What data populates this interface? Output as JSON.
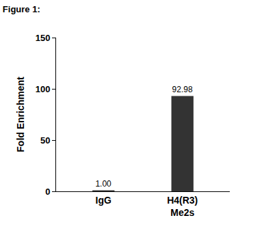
{
  "chart_data": {
    "type": "bar",
    "title": "Figure 1:",
    "y_label": "Fold Enrichment",
    "categories": [
      "IgG",
      "H4(R3) Me2s"
    ],
    "values": [
      1.0,
      92.98
    ],
    "value_labels": [
      "1.00",
      "92.98"
    ],
    "color": "#333333",
    "ylim": [
      0,
      150
    ],
    "yticks": [
      0,
      50,
      100,
      150
    ],
    "grid": false,
    "data_labels": true
  }
}
